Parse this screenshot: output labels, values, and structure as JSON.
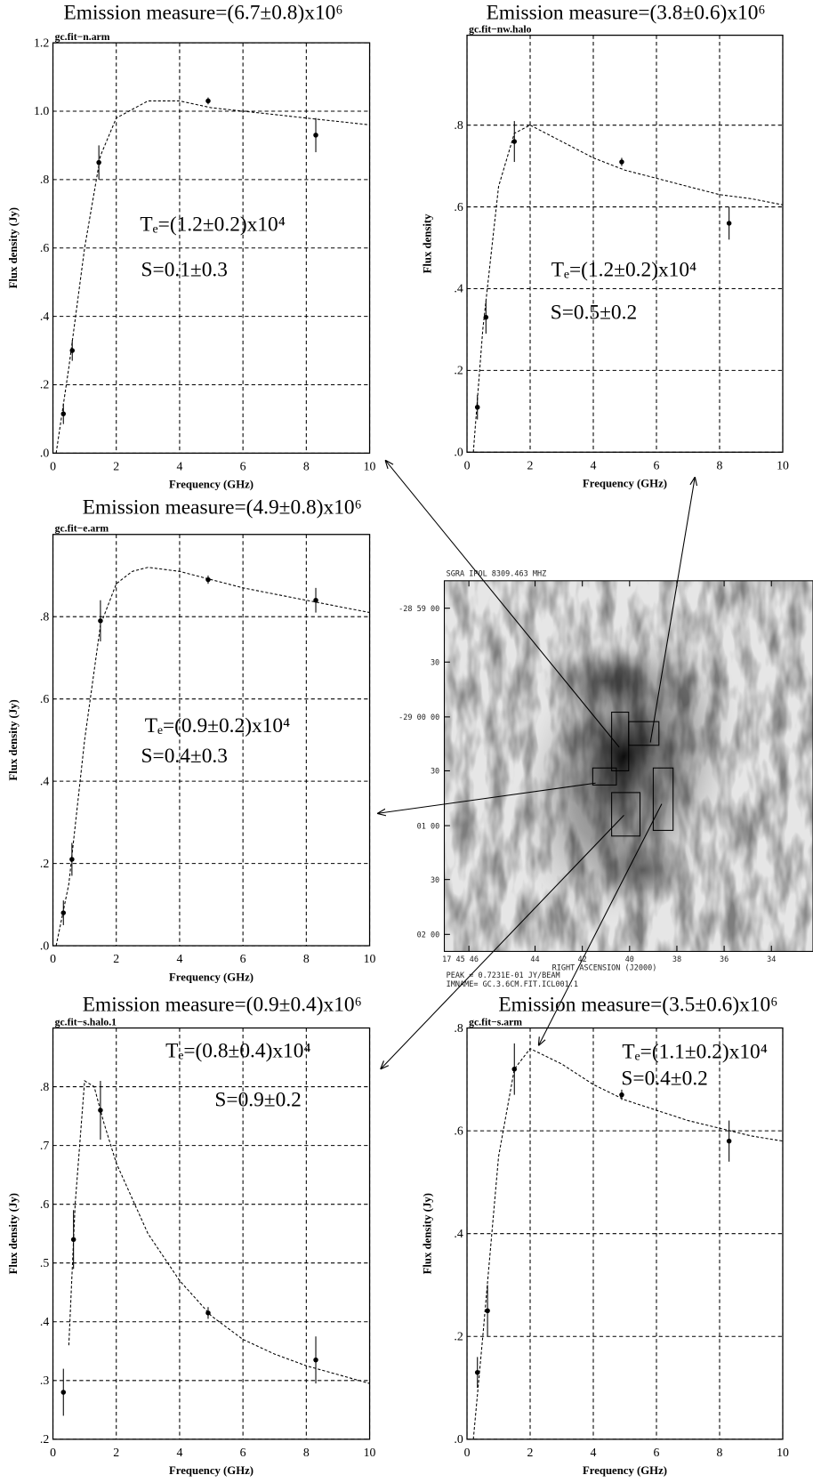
{
  "chart_data": [
    {
      "type": "scatter",
      "title": "Emission measure=(6.7±0.8)x10⁶",
      "subtitle": "gc.fit−n.arm",
      "x_label": "Frequency (GHz)",
      "y_label": "Flux density (Jy)",
      "annotations": [
        "Tₑ=(1.2±0.2)x10⁴",
        "S=0.1±0.3"
      ],
      "xlim": [
        0,
        10
      ],
      "xticks": [
        0,
        2,
        4,
        6,
        8,
        10
      ],
      "ylim": [
        0,
        1.2
      ],
      "yticks": [
        {
          "value": 0,
          "label": ".0"
        },
        {
          "value": 0.2,
          "label": ".2"
        },
        {
          "value": 0.4,
          "label": ".4"
        },
        {
          "value": 0.6,
          "label": ".6"
        },
        {
          "value": 0.8,
          "label": ".8"
        },
        {
          "value": 1.0,
          "label": "1.0"
        },
        1.2
      ],
      "grid": true,
      "series": [
        {
          "color": "#000000",
          "x": [
            0.33,
            0.61,
            1.45,
            4.9,
            8.3
          ],
          "values": [
            0.115,
            0.3,
            0.85,
            1.03,
            0.93
          ],
          "errors": [
            0.03,
            0.03,
            0.05,
            0.01,
            0.05
          ]
        },
        {
          "color": "#000000",
          "x": [
            0.1,
            0.5,
            1,
            1.5,
            2,
            3,
            4,
            5,
            6,
            7,
            8,
            9,
            10
          ],
          "values": [
            0,
            0.25,
            0.6,
            0.87,
            0.98,
            1.03,
            1.03,
            1.01,
            1.0,
            0.99,
            0.98,
            0.97,
            0.96
          ]
        }
      ]
    },
    {
      "type": "scatter",
      "title": "Emission measure=(3.8±0.6)x10⁶",
      "subtitle": "gc.fit−nw.halo",
      "x_label": "Frequency (GHz)",
      "y_label": "Flux density",
      "annotations": [
        "Tₑ=(1.2±0.2)x10⁴",
        "S=0.5±0.2"
      ],
      "xlim": [
        0,
        10
      ],
      "xticks": [
        0,
        2,
        4,
        6,
        8,
        10
      ],
      "ylim": [
        0,
        1.02
      ],
      "yticks": [
        {
          "value": 0,
          "label": ".0"
        },
        {
          "value": 0.2,
          "label": ".2"
        },
        {
          "value": 0.4,
          "label": ".4"
        },
        {
          "value": 0.6,
          "label": ".6"
        },
        {
          "value": 0.8,
          "label": ".8"
        }
      ],
      "grid": true,
      "series": [
        {
          "color": "#000000",
          "x": [
            0.33,
            0.6,
            1.5,
            4.9,
            8.3
          ],
          "values": [
            0.11,
            0.33,
            0.76,
            0.71,
            0.56
          ],
          "errors": [
            0.03,
            0.04,
            0.05,
            0.01,
            0.04
          ]
        },
        {
          "color": "#000000",
          "x": [
            0.2,
            0.5,
            1,
            1.5,
            2,
            3,
            4,
            5,
            6,
            7,
            8,
            9,
            10
          ],
          "values": [
            0,
            0.3,
            0.65,
            0.78,
            0.8,
            0.76,
            0.72,
            0.69,
            0.67,
            0.65,
            0.63,
            0.62,
            0.605
          ]
        }
      ]
    },
    {
      "type": "scatter",
      "title": "Emission measure=(4.9±0.8)x10⁶",
      "subtitle": "gc.fit−e.arm",
      "x_label": "Frequency (GHz)",
      "y_label": "Flux density (Jy)",
      "annotations": [
        "Tₑ=(0.9±0.2)x10⁴",
        "S=0.4±0.3"
      ],
      "xlim": [
        0,
        10
      ],
      "xticks": [
        0,
        2,
        4,
        6,
        8,
        10
      ],
      "ylim": [
        0,
        1.0
      ],
      "yticks": [
        {
          "value": 0,
          "label": ".0"
        },
        {
          "value": 0.2,
          "label": ".2"
        },
        {
          "value": 0.4,
          "label": ".4"
        },
        {
          "value": 0.6,
          "label": ".6"
        },
        {
          "value": 0.8,
          "label": ".8"
        }
      ],
      "grid": true,
      "series": [
        {
          "color": "#000000",
          "x": [
            0.33,
            0.6,
            1.5,
            4.9,
            8.3
          ],
          "values": [
            0.08,
            0.21,
            0.79,
            0.89,
            0.84
          ],
          "errors": [
            0.03,
            0.04,
            0.05,
            0.01,
            0.03
          ]
        },
        {
          "color": "#000000",
          "x": [
            0.1,
            0.5,
            1,
            1.5,
            2,
            2.5,
            3,
            4,
            5,
            6,
            7,
            8,
            9,
            10
          ],
          "values": [
            0,
            0.15,
            0.5,
            0.78,
            0.88,
            0.91,
            0.92,
            0.91,
            0.89,
            0.87,
            0.855,
            0.84,
            0.825,
            0.81
          ]
        }
      ]
    },
    {
      "type": "scatter",
      "title": "Emission measure=(0.9±0.4)x10⁶",
      "subtitle": "gc.fit−s.halo.1",
      "x_label": "Frequency (GHz)",
      "y_label": "Flux density (Jy)",
      "annotations": [
        "Tₑ=(0.8±0.4)x10⁴",
        "S=0.9±0.2"
      ],
      "xlim": [
        0,
        10
      ],
      "xticks": [
        0,
        2,
        4,
        6,
        8,
        10
      ],
      "ylim": [
        0.2,
        0.9
      ],
      "yticks": [
        {
          "value": 0.2,
          "label": ".2"
        },
        {
          "value": 0.3,
          "label": ".3"
        },
        {
          "value": 0.4,
          "label": ".4"
        },
        {
          "value": 0.5,
          "label": ".5"
        },
        {
          "value": 0.6,
          "label": ".6"
        },
        {
          "value": 0.7,
          "label": ".7"
        },
        {
          "value": 0.8,
          "label": ".8"
        }
      ],
      "grid": true,
      "series": [
        {
          "color": "#000000",
          "x": [
            0.33,
            0.65,
            1.5,
            4.9,
            8.3
          ],
          "values": [
            0.28,
            0.54,
            0.76,
            0.415,
            0.335
          ],
          "errors": [
            0.04,
            0.05,
            0.05,
            0.01,
            0.04
          ]
        },
        {
          "color": "#000000",
          "x": [
            0.5,
            0.7,
            1,
            1.3,
            1.6,
            2,
            3,
            4,
            5,
            6,
            7,
            8,
            9,
            10
          ],
          "values": [
            0.36,
            0.6,
            0.81,
            0.8,
            0.74,
            0.67,
            0.55,
            0.47,
            0.41,
            0.37,
            0.345,
            0.325,
            0.31,
            0.295
          ]
        }
      ]
    },
    {
      "type": "scatter",
      "title": "Emission measure=(3.5±0.6)x10⁶",
      "subtitle": "gc.fit−s.arm",
      "x_label": "Frequency (GHz)",
      "y_label": "Flux density (Jy)",
      "annotations": [
        "Tₑ=(1.1±0.2)x10⁴",
        "S=0.4±0.2"
      ],
      "xlim": [
        0,
        10
      ],
      "xticks": [
        0,
        2,
        4,
        6,
        8,
        10
      ],
      "ylim": [
        0,
        0.8
      ],
      "yticks": [
        {
          "value": 0,
          "label": ".0"
        },
        {
          "value": 0.2,
          "label": ".2"
        },
        {
          "value": 0.4,
          "label": ".4"
        },
        {
          "value": 0.6,
          "label": ".6"
        },
        {
          "value": 0.8,
          "label": ".8"
        }
      ],
      "grid": true,
      "series": [
        {
          "color": "#000000",
          "x": [
            0.33,
            0.65,
            1.5,
            4.9,
            8.3
          ],
          "values": [
            0.13,
            0.25,
            0.72,
            0.67,
            0.58
          ],
          "errors": [
            0.03,
            0.05,
            0.05,
            0.01,
            0.04
          ]
        },
        {
          "color": "#000000",
          "x": [
            0.2,
            0.5,
            1,
            1.5,
            2,
            3,
            4,
            5,
            6,
            7,
            8,
            9,
            10
          ],
          "values": [
            0,
            0.2,
            0.55,
            0.72,
            0.76,
            0.73,
            0.69,
            0.66,
            0.64,
            0.62,
            0.605,
            0.59,
            0.58
          ]
        }
      ]
    }
  ],
  "image_panel": {
    "header": "SGRA IPOL  8309.463 MHZ",
    "dec_labels": [
      "-28 59 00",
      "30",
      "-29 00 00",
      "30",
      "01 00",
      "30",
      "02 00"
    ],
    "ra_labels": [
      "17 45 46",
      "44",
      "42",
      "40",
      "38",
      "36",
      "34"
    ],
    "ra_axis_label": "RIGHT ASCENSION (J2000)",
    "peak": "PEAK =  0.7231E-01 JY/BEAM",
    "imname": "IMNAME= GC.3.6CM.FIT.ICL001.1"
  }
}
